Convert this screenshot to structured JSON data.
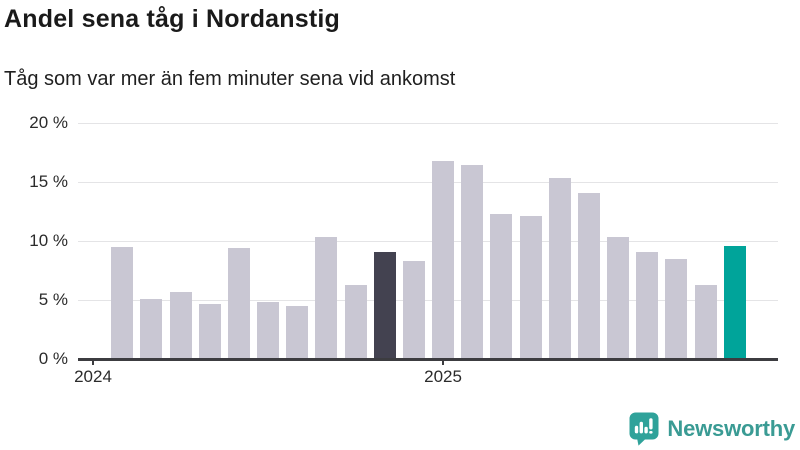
{
  "header": {
    "title": "Andel sena tåg i Nordanstig",
    "subtitle": "Tåg som var mer än fem minuter sena vid ankomst"
  },
  "chart_data": {
    "type": "bar",
    "title": "Andel sena tåg i Nordanstig",
    "subtitle": "Tåg som var mer än fem minuter sena vid ankomst",
    "unit": "%",
    "ylim": [
      0,
      20
    ],
    "grid": true,
    "legend_position": "none",
    "yticks": [
      {
        "value": 0,
        "label": "0 %"
      },
      {
        "value": 5,
        "label": "5 %"
      },
      {
        "value": 10,
        "label": "10 %"
      },
      {
        "value": 15,
        "label": "15 %"
      },
      {
        "value": 20,
        "label": "20 %"
      }
    ],
    "xticks": [
      {
        "slot": 0,
        "label": "2024"
      },
      {
        "slot": 12,
        "label": "2025"
      }
    ],
    "colors": {
      "default": "#c9c7d3",
      "dark": "#434250",
      "teal": "#00a49a"
    },
    "bars": [
      {
        "slot": 1,
        "period": "2024-02",
        "value": 9.5,
        "style": "default"
      },
      {
        "slot": 2,
        "period": "2024-03",
        "value": 5.1,
        "style": "default"
      },
      {
        "slot": 3,
        "period": "2024-04",
        "value": 5.7,
        "style": "default"
      },
      {
        "slot": 4,
        "period": "2024-05",
        "value": 4.7,
        "style": "default"
      },
      {
        "slot": 5,
        "period": "2024-06",
        "value": 9.4,
        "style": "default"
      },
      {
        "slot": 6,
        "period": "2024-07",
        "value": 4.8,
        "style": "default"
      },
      {
        "slot": 7,
        "period": "2024-08",
        "value": 4.5,
        "style": "default"
      },
      {
        "slot": 8,
        "period": "2024-09",
        "value": 10.3,
        "style": "default"
      },
      {
        "slot": 9,
        "period": "2024-10",
        "value": 6.3,
        "style": "default"
      },
      {
        "slot": 10,
        "period": "2024-11",
        "value": 9.1,
        "style": "dark"
      },
      {
        "slot": 11,
        "period": "2024-12",
        "value": 8.3,
        "style": "default"
      },
      {
        "slot": 12,
        "period": "2025-01",
        "value": 16.8,
        "style": "default"
      },
      {
        "slot": 13,
        "period": "2025-02",
        "value": 16.4,
        "style": "default"
      },
      {
        "slot": 14,
        "period": "2025-03",
        "value": 12.3,
        "style": "default"
      },
      {
        "slot": 15,
        "period": "2025-04",
        "value": 12.1,
        "style": "default"
      },
      {
        "slot": 16,
        "period": "2025-05",
        "value": 15.3,
        "style": "default"
      },
      {
        "slot": 17,
        "period": "2025-06",
        "value": 14.1,
        "style": "default"
      },
      {
        "slot": 18,
        "period": "2025-07",
        "value": 10.3,
        "style": "default"
      },
      {
        "slot": 19,
        "period": "2025-08",
        "value": 9.1,
        "style": "default"
      },
      {
        "slot": 20,
        "period": "2025-09",
        "value": 8.5,
        "style": "default"
      },
      {
        "slot": 21,
        "period": "2025-10",
        "value": 6.3,
        "style": "default"
      },
      {
        "slot": 22,
        "period": "2025-11",
        "value": 9.6,
        "style": "teal"
      }
    ]
  },
  "branding": {
    "logo_text": "Newsworthy",
    "logo_text_color": "#3a9b94",
    "icon_color": "#2fa29a",
    "icon_name": "newsworthy-speech-bubble-bar-chart-icon"
  }
}
